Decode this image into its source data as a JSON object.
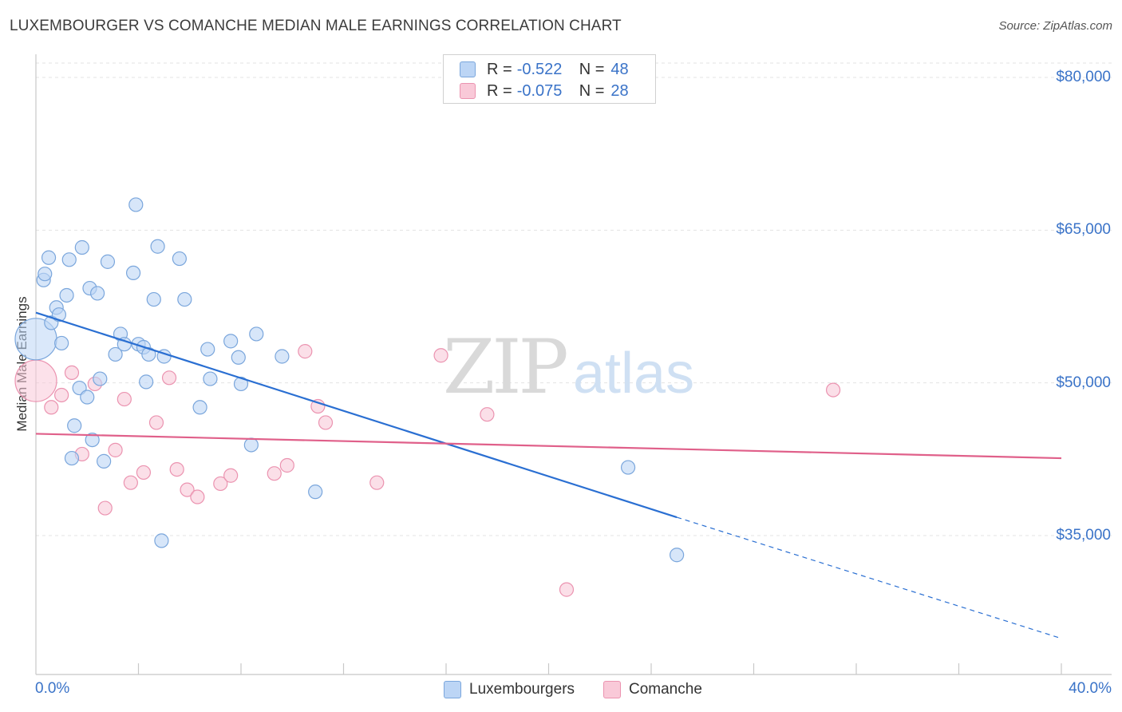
{
  "title": "LUXEMBOURGER VS COMANCHE MEDIAN MALE EARNINGS CORRELATION CHART",
  "source": "Source: ZipAtlas.com",
  "watermark": {
    "zip": "ZIP",
    "atlas": "atlas"
  },
  "legend": {
    "rows": [
      {
        "r_label": "R =",
        "r_value": "-0.522",
        "n_label": "N =",
        "n_value": "48"
      },
      {
        "r_label": "R =",
        "r_value": "-0.075",
        "n_label": "N =",
        "n_value": "28"
      }
    ]
  },
  "colors": {
    "blue_fill": "#bcd5f5",
    "blue_stroke": "#7aa6dc",
    "blue_line": "#2a6fd2",
    "pink_fill": "#f9c9d8",
    "pink_stroke": "#eb93b0",
    "pink_line": "#e0608a",
    "accent_text": "#3a73c8"
  },
  "chart_data": {
    "type": "scatter",
    "title": "LUXEMBOURGER VS COMANCHE MEDIAN MALE EARNINGS CORRELATION CHART",
    "xlabel": "",
    "ylabel": "Median Male Earnings",
    "xlim": [
      0,
      40
    ],
    "ylim": [
      20000,
      82000
    ],
    "x_tick_labels": [
      "0.0%",
      "40.0%"
    ],
    "y_ticks": [
      {
        "value": 35000,
        "label": "$35,000"
      },
      {
        "value": 50000,
        "label": "$50,000"
      },
      {
        "value": 65000,
        "label": "$65,000"
      },
      {
        "value": 80000,
        "label": "$80,000"
      }
    ],
    "grid": true,
    "legend_position": "top-center",
    "series": [
      {
        "name": "Luxembourgers",
        "r": -0.522,
        "n": 48,
        "trend": {
          "x_start": 0,
          "y_start": 56900,
          "x_solid_end": 25,
          "y_solid_end": 36800,
          "x_end": 40,
          "y_end": 24900
        },
        "points": [
          {
            "x": 0.0,
            "y": 54300,
            "big": true
          },
          {
            "x": 0.3,
            "y": 60100
          },
          {
            "x": 0.35,
            "y": 60700
          },
          {
            "x": 0.5,
            "y": 62300
          },
          {
            "x": 0.6,
            "y": 55900
          },
          {
            "x": 0.8,
            "y": 57400
          },
          {
            "x": 0.9,
            "y": 56700
          },
          {
            "x": 1.0,
            "y": 53900
          },
          {
            "x": 1.2,
            "y": 58600
          },
          {
            "x": 1.3,
            "y": 62100
          },
          {
            "x": 1.4,
            "y": 42600
          },
          {
            "x": 1.5,
            "y": 45800
          },
          {
            "x": 1.7,
            "y": 49500
          },
          {
            "x": 1.8,
            "y": 63300
          },
          {
            "x": 2.0,
            "y": 48600
          },
          {
            "x": 2.1,
            "y": 59300
          },
          {
            "x": 2.2,
            "y": 44400
          },
          {
            "x": 2.4,
            "y": 58800
          },
          {
            "x": 2.5,
            "y": 50400
          },
          {
            "x": 2.65,
            "y": 42300
          },
          {
            "x": 2.8,
            "y": 61900
          },
          {
            "x": 3.1,
            "y": 52800
          },
          {
            "x": 3.3,
            "y": 54800
          },
          {
            "x": 3.45,
            "y": 53800
          },
          {
            "x": 3.8,
            "y": 60800
          },
          {
            "x": 3.9,
            "y": 67500
          },
          {
            "x": 4.0,
            "y": 53800
          },
          {
            "x": 4.2,
            "y": 53500
          },
          {
            "x": 4.3,
            "y": 50100
          },
          {
            "x": 4.4,
            "y": 52800
          },
          {
            "x": 4.6,
            "y": 58200
          },
          {
            "x": 4.75,
            "y": 63400
          },
          {
            "x": 4.9,
            "y": 34500
          },
          {
            "x": 5.0,
            "y": 52600
          },
          {
            "x": 5.6,
            "y": 62200
          },
          {
            "x": 5.8,
            "y": 58200
          },
          {
            "x": 6.4,
            "y": 47600
          },
          {
            "x": 6.7,
            "y": 53300
          },
          {
            "x": 6.8,
            "y": 50400
          },
          {
            "x": 7.6,
            "y": 54100
          },
          {
            "x": 7.9,
            "y": 52500
          },
          {
            "x": 8.0,
            "y": 49900
          },
          {
            "x": 8.4,
            "y": 43900
          },
          {
            "x": 8.6,
            "y": 54800
          },
          {
            "x": 9.6,
            "y": 52600
          },
          {
            "x": 10.9,
            "y": 39300
          },
          {
            "x": 23.1,
            "y": 41700
          },
          {
            "x": 25.0,
            "y": 33100
          }
        ]
      },
      {
        "name": "Comanche",
        "r": -0.075,
        "n": 28,
        "trend": {
          "x_start": 0,
          "y_start": 45000,
          "x_end": 40,
          "y_end": 42600
        },
        "points": [
          {
            "x": 0.0,
            "y": 50200,
            "big": true
          },
          {
            "x": 0.6,
            "y": 47600
          },
          {
            "x": 1.0,
            "y": 48800
          },
          {
            "x": 1.4,
            "y": 51000
          },
          {
            "x": 1.8,
            "y": 43000
          },
          {
            "x": 2.3,
            "y": 49900
          },
          {
            "x": 2.7,
            "y": 37700
          },
          {
            "x": 3.1,
            "y": 43400
          },
          {
            "x": 3.45,
            "y": 48400
          },
          {
            "x": 3.7,
            "y": 40200
          },
          {
            "x": 4.2,
            "y": 41200
          },
          {
            "x": 4.7,
            "y": 46100
          },
          {
            "x": 5.2,
            "y": 50500
          },
          {
            "x": 5.5,
            "y": 41500
          },
          {
            "x": 5.9,
            "y": 39500
          },
          {
            "x": 6.3,
            "y": 38800
          },
          {
            "x": 7.2,
            "y": 40100
          },
          {
            "x": 7.6,
            "y": 40900
          },
          {
            "x": 9.3,
            "y": 41100
          },
          {
            "x": 9.8,
            "y": 41900
          },
          {
            "x": 10.5,
            "y": 53100
          },
          {
            "x": 11.0,
            "y": 47700
          },
          {
            "x": 11.3,
            "y": 46100
          },
          {
            "x": 13.3,
            "y": 40200
          },
          {
            "x": 15.8,
            "y": 52700
          },
          {
            "x": 17.6,
            "y": 46900
          },
          {
            "x": 20.7,
            "y": 29700
          },
          {
            "x": 31.1,
            "y": 49300
          }
        ]
      }
    ]
  }
}
